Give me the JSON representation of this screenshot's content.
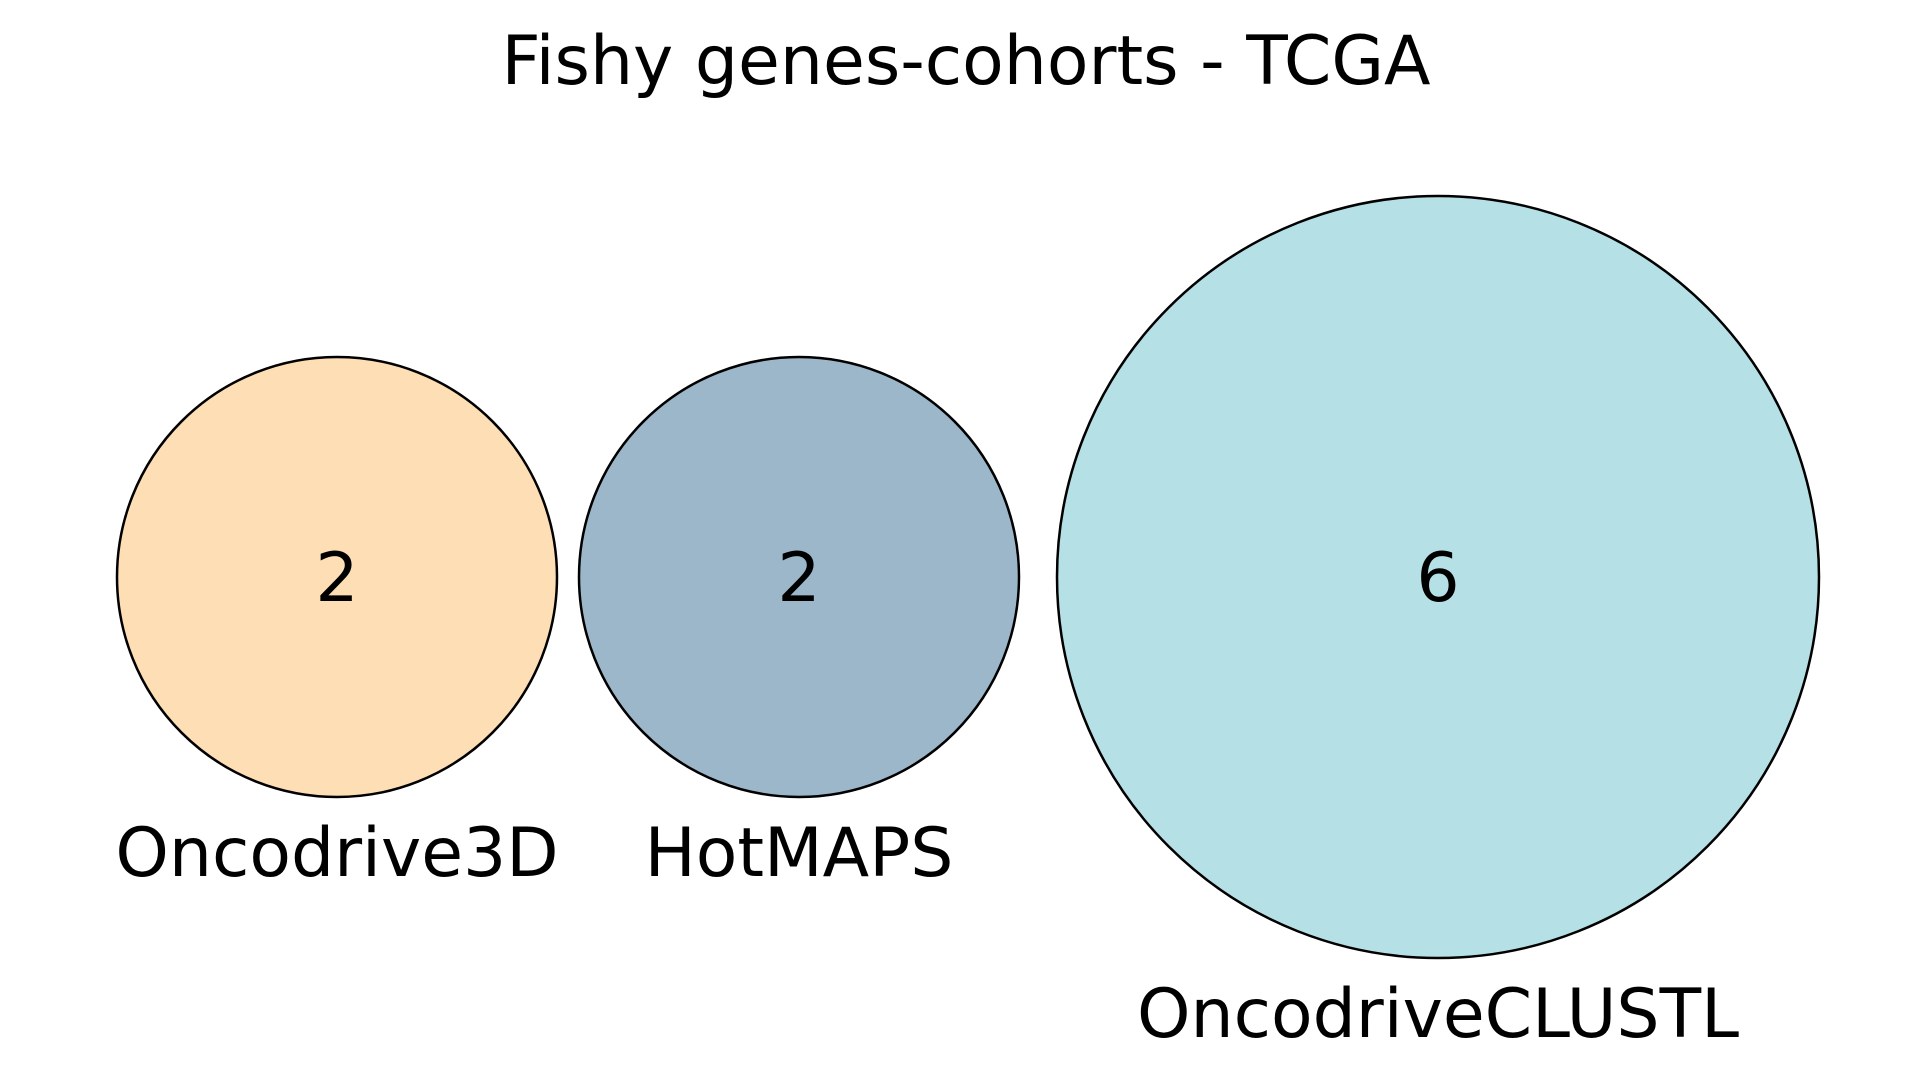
{
  "title": "Fishy genes-cohorts - TCGA",
  "sets": [
    {
      "name": "Oncodrive3D",
      "count": "2",
      "color": "#fddeb5"
    },
    {
      "name": "HotMAPS",
      "count": "2",
      "color": "#9cb7ca"
    },
    {
      "name": "OncodriveCLUSTL",
      "count": "6",
      "color": "#b5e0e6"
    }
  ]
}
